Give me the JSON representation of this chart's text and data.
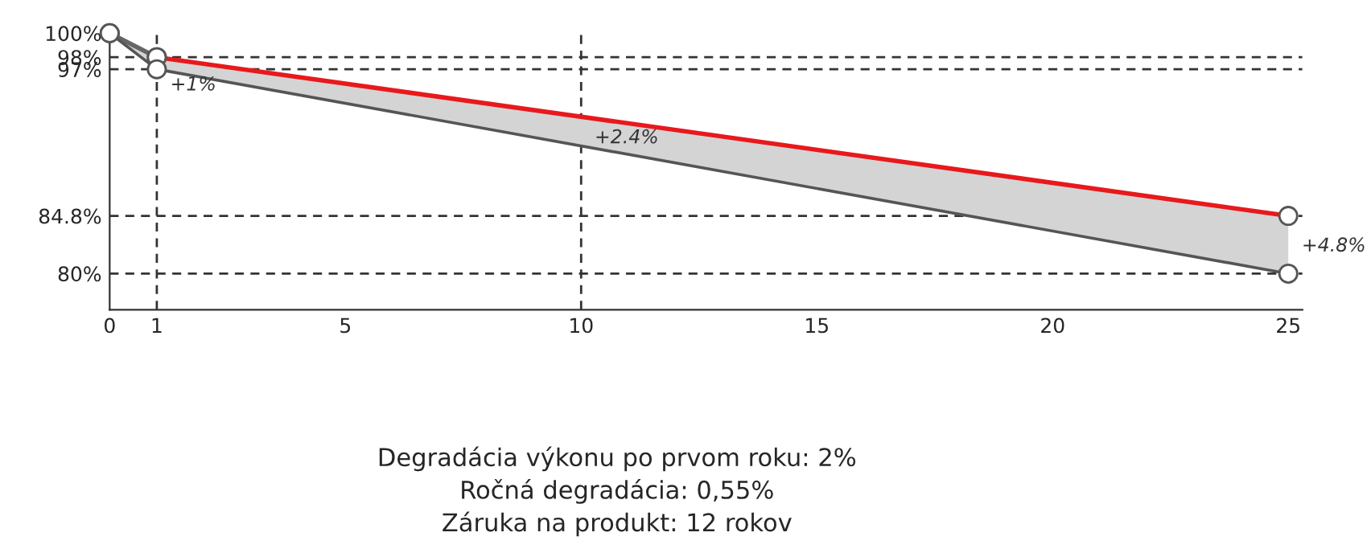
{
  "chart_data": {
    "type": "line",
    "series": [
      {
        "color": "#666666",
        "x": [
          0,
          1
        ],
        "values": [
          100,
          98
        ]
      },
      {
        "color": "#e8191c",
        "x": [
          1,
          25
        ],
        "values": [
          98,
          84.8
        ]
      },
      {
        "color": "#555555",
        "x": [
          0,
          1,
          25
        ],
        "values": [
          100,
          97,
          80
        ],
        "lower": [
          100,
          97,
          80
        ],
        "upper": [
          100,
          98,
          84.8
        ]
      }
    ],
    "xlim": [
      0,
      25.3
    ],
    "ylim": [
      77,
      100
    ],
    "xticks": [
      0,
      1,
      5,
      10,
      15,
      20,
      25
    ],
    "yticks": [
      {
        "value": 80,
        "label": "80%"
      },
      {
        "value": 84.8,
        "label": "84.8%"
      },
      {
        "value": 97,
        "label": "97%"
      },
      {
        "value": 98,
        "label": "98%"
      },
      {
        "value": 100,
        "label": "100%"
      }
    ],
    "ref_lines": [
      {
        "axis": "y",
        "value": 98,
        "line_style": "dashed",
        "color": "#333333"
      },
      {
        "axis": "y",
        "value": 97,
        "line_style": "dashed",
        "color": "#333333"
      },
      {
        "axis": "y",
        "value": 84.8,
        "line_style": "dashed",
        "color": "#333333"
      },
      {
        "axis": "y",
        "value": 80,
        "line_style": "dashed",
        "color": "#333333"
      },
      {
        "axis": "x",
        "value": 1,
        "line_style": "dashed",
        "color": "#333333"
      },
      {
        "axis": "x",
        "value": 10,
        "line_style": "dashed",
        "color": "#333333"
      }
    ],
    "marker": "circle",
    "grid": false,
    "legend": false,
    "annotations": [
      {
        "text": "+1%",
        "x": 1,
        "y": 97
      },
      {
        "text": "+2.4%",
        "x": 10,
        "y": 92.6
      },
      {
        "text": "+4.8%",
        "x": 25,
        "y": 83.6
      },
      "Degradácia výkonu po prvom roku: 2%\nRočná degradácia: 0,55%\nZáruka na produkt: 12 rokov"
    ]
  }
}
